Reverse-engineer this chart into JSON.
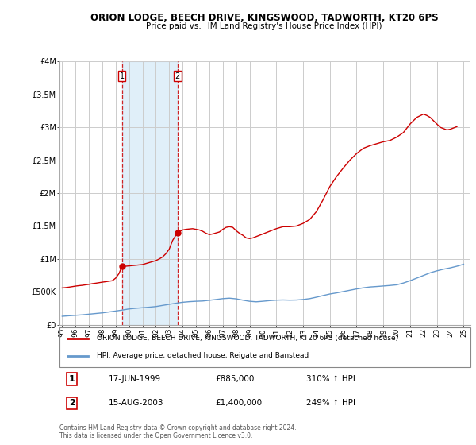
{
  "title": "ORION LODGE, BEECH DRIVE, KINGSWOOD, TADWORTH, KT20 6PS",
  "subtitle": "Price paid vs. HM Land Registry's House Price Index (HPI)",
  "legend_line1": "ORION LODGE, BEECH DRIVE, KINGSWOOD, TADWORTH, KT20 6PS (detached house)",
  "legend_line2": "HPI: Average price, detached house, Reigate and Banstead",
  "transaction1_label": "1",
  "transaction1_date": "17-JUN-1999",
  "transaction1_price": "£885,000",
  "transaction1_hpi": "310% ↑ HPI",
  "transaction2_label": "2",
  "transaction2_date": "15-AUG-2003",
  "transaction2_price": "£1,400,000",
  "transaction2_hpi": "249% ↑ HPI",
  "footer": "Contains HM Land Registry data © Crown copyright and database right 2024.\nThis data is licensed under the Open Government Licence v3.0.",
  "background_color": "#ffffff",
  "plot_bg_color": "#ffffff",
  "grid_color": "#cccccc",
  "red_line_color": "#cc0000",
  "blue_line_color": "#6699cc",
  "dashed_line_color": "#cc0000",
  "shade_color": "#cce5f5",
  "ylim": [
    0,
    4000000
  ],
  "xlim_start": 1994.8,
  "xlim_end": 2025.5,
  "transaction1_x": 1999.46,
  "transaction2_x": 2003.62,
  "transaction1_y": 885000,
  "transaction2_y": 1400000,
  "hpi_years": [
    1995.0,
    1995.5,
    1996.0,
    1996.5,
    1997.0,
    1997.5,
    1998.0,
    1998.5,
    1999.0,
    1999.5,
    2000.0,
    2000.5,
    2001.0,
    2001.5,
    2002.0,
    2002.5,
    2003.0,
    2003.5,
    2004.0,
    2004.5,
    2005.0,
    2005.5,
    2006.0,
    2006.5,
    2007.0,
    2007.5,
    2008.0,
    2008.5,
    2009.0,
    2009.5,
    2010.0,
    2010.5,
    2011.0,
    2011.5,
    2012.0,
    2012.5,
    2013.0,
    2013.5,
    2014.0,
    2014.5,
    2015.0,
    2015.5,
    2016.0,
    2016.5,
    2017.0,
    2017.5,
    2018.0,
    2018.5,
    2019.0,
    2019.5,
    2020.0,
    2020.5,
    2021.0,
    2021.5,
    2022.0,
    2022.5,
    2023.0,
    2023.5,
    2024.0,
    2024.5,
    2025.0
  ],
  "hpi_values": [
    130000,
    138000,
    145000,
    152000,
    162000,
    172000,
    182000,
    196000,
    210000,
    225000,
    242000,
    252000,
    260000,
    268000,
    278000,
    295000,
    312000,
    328000,
    343000,
    352000,
    358000,
    362000,
    373000,
    385000,
    398000,
    405000,
    395000,
    375000,
    358000,
    350000,
    358000,
    368000,
    375000,
    378000,
    375000,
    377000,
    385000,
    398000,
    420000,
    445000,
    468000,
    485000,
    505000,
    525000,
    545000,
    562000,
    575000,
    582000,
    590000,
    598000,
    608000,
    635000,
    670000,
    710000,
    750000,
    790000,
    820000,
    845000,
    865000,
    890000,
    920000
  ],
  "property_years": [
    1995.0,
    1995.25,
    1995.5,
    1995.75,
    1996.0,
    1996.25,
    1996.5,
    1996.75,
    1997.0,
    1997.25,
    1997.5,
    1997.75,
    1998.0,
    1998.25,
    1998.5,
    1998.75,
    1999.0,
    1999.25,
    1999.46,
    1999.75,
    2000.0,
    2000.25,
    2000.5,
    2000.75,
    2001.0,
    2001.25,
    2001.5,
    2001.75,
    2002.0,
    2002.25,
    2002.5,
    2002.75,
    2003.0,
    2003.25,
    2003.62,
    2004.0,
    2004.25,
    2004.5,
    2004.75,
    2005.0,
    2005.25,
    2005.5,
    2005.75,
    2006.0,
    2006.25,
    2006.5,
    2006.75,
    2007.0,
    2007.25,
    2007.5,
    2007.75,
    2008.0,
    2008.25,
    2008.5,
    2008.75,
    2009.0,
    2009.25,
    2009.5,
    2009.75,
    2010.0,
    2010.5,
    2011.0,
    2011.5,
    2012.0,
    2012.5,
    2013.0,
    2013.5,
    2014.0,
    2014.5,
    2015.0,
    2015.5,
    2016.0,
    2016.5,
    2017.0,
    2017.5,
    2018.0,
    2018.5,
    2019.0,
    2019.5,
    2020.0,
    2020.5,
    2021.0,
    2021.5,
    2022.0,
    2022.25,
    2022.5,
    2022.75,
    2023.0,
    2023.25,
    2023.5,
    2023.75,
    2024.0,
    2024.25,
    2024.5
  ],
  "property_values": [
    560000,
    565000,
    572000,
    580000,
    588000,
    595000,
    600000,
    608000,
    615000,
    625000,
    632000,
    640000,
    648000,
    655000,
    663000,
    670000,
    710000,
    780000,
    885000,
    890000,
    895000,
    900000,
    905000,
    910000,
    915000,
    930000,
    945000,
    960000,
    975000,
    1000000,
    1030000,
    1080000,
    1150000,
    1280000,
    1400000,
    1440000,
    1450000,
    1455000,
    1460000,
    1450000,
    1440000,
    1420000,
    1390000,
    1370000,
    1380000,
    1395000,
    1410000,
    1450000,
    1480000,
    1490000,
    1480000,
    1430000,
    1390000,
    1360000,
    1320000,
    1310000,
    1320000,
    1340000,
    1360000,
    1380000,
    1420000,
    1460000,
    1490000,
    1490000,
    1500000,
    1540000,
    1600000,
    1720000,
    1900000,
    2100000,
    2250000,
    2380000,
    2500000,
    2600000,
    2680000,
    2720000,
    2750000,
    2780000,
    2800000,
    2850000,
    2920000,
    3050000,
    3150000,
    3200000,
    3180000,
    3150000,
    3100000,
    3050000,
    3000000,
    2980000,
    2960000,
    2970000,
    2990000,
    3010000
  ]
}
